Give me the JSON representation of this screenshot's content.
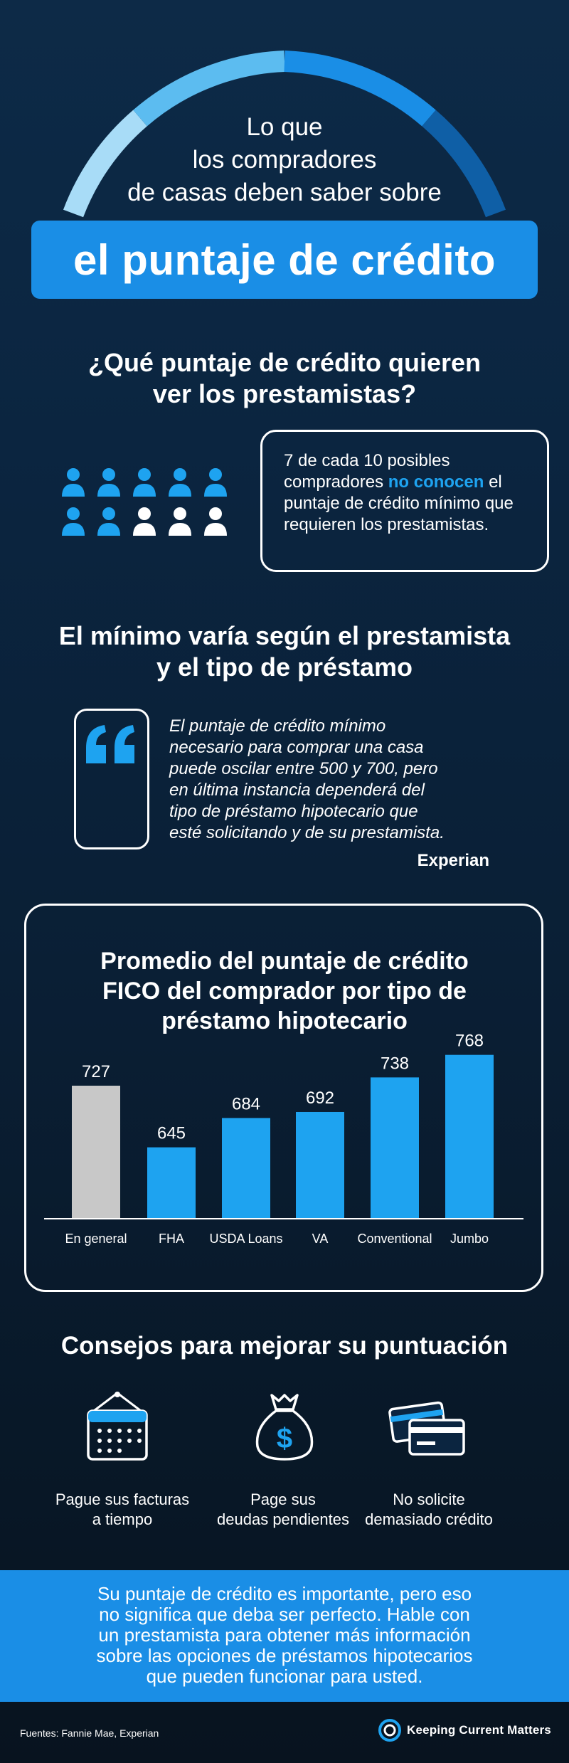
{
  "header": {
    "subtitle_lines": [
      "Lo que",
      "los compradores",
      "de casas deben saber sobre"
    ],
    "title": "el puntaje de crédito",
    "arc_colors": [
      "#a8dcf7",
      "#5cbcf0",
      "#1a8ee6",
      "#0f5fa6"
    ]
  },
  "section1": {
    "heading_lines": [
      "¿Qué puntaje de crédito quieren",
      "ver los prestamistas?"
    ],
    "people": {
      "blue_count": 7,
      "white_count": 3,
      "blue_color": "#1ea3f0",
      "white_color": "#ffffff"
    },
    "stat_before": "7 de cada 10 posibles compradores ",
    "stat_highlight": "no conocen",
    "stat_after": " el puntaje de crédito mínimo que requieren los prestamistas."
  },
  "section2": {
    "heading_lines": [
      "El mínimo varía según el prestamista",
      "y el tipo de préstamo"
    ],
    "quote_lines": [
      "El puntaje de crédito mínimo",
      "necesario para comprar una casa",
      "puede oscilar entre 500 y 700, pero",
      "en última instancia dependerá del",
      "tipo de préstamo hipotecario que",
      "esté solicitando y de su prestamista."
    ],
    "quote_source": "Experian"
  },
  "chart_data": {
    "type": "bar",
    "title_lines": [
      "Promedio del puntaje de crédito",
      "FICO del comprador por tipo de",
      "préstamo hipotecario"
    ],
    "categories": [
      "En general",
      "FHA",
      "USDA Loans",
      "VA",
      "Conventional",
      "Jumbo"
    ],
    "values": [
      727,
      645,
      684,
      692,
      738,
      768
    ],
    "bar_colors": [
      "#c8c8c8",
      "#1ea3f0",
      "#1ea3f0",
      "#1ea3f0",
      "#1ea3f0",
      "#1ea3f0"
    ],
    "ylim": [
      550,
      780
    ],
    "grid": false
  },
  "tips": {
    "heading": "Consejos para mejorar su puntuación",
    "items": [
      {
        "icon": "calendar-icon",
        "lines": [
          "Pague sus facturas",
          "a tiempo"
        ]
      },
      {
        "icon": "money-bag-icon",
        "lines": [
          "Page sus",
          "deudas pendientes"
        ]
      },
      {
        "icon": "credit-cards-icon",
        "lines": [
          "No solicite",
          "demasiado crédito"
        ]
      }
    ]
  },
  "banner": {
    "lines": [
      "Su puntaje de crédito es importante, pero eso",
      "no significa que deba ser perfecto. Hable con",
      "un prestamista para obtener más información",
      "sobre las opciones de préstamos hipotecarios",
      "que pueden funcionar para usted."
    ]
  },
  "footer": {
    "sources": "Fuentes: Fannie Mae, Experian",
    "logo_text": "Keeping Current Matters"
  }
}
